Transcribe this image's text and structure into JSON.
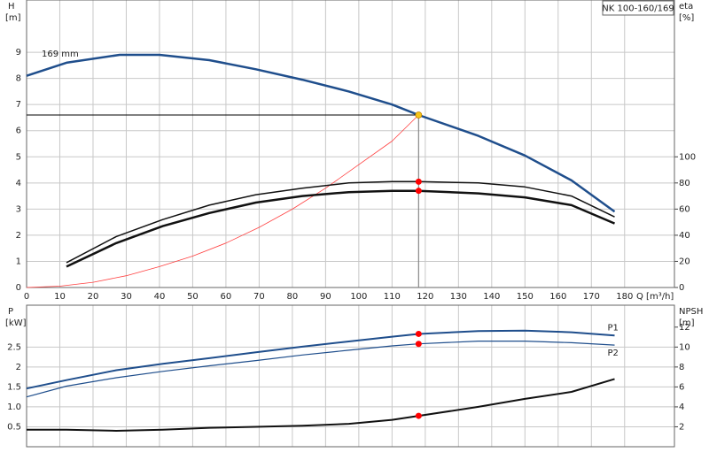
{
  "chart_data": [
    {
      "type": "line",
      "title": "NK 100-160/169",
      "xlabel": "Q [m³/h]",
      "ylabel": "H",
      "yunit": "[m]",
      "y2label": "eta",
      "y2unit": "[%]",
      "xlim": [
        0,
        195
      ],
      "xticks": [
        0,
        10,
        20,
        30,
        40,
        50,
        60,
        70,
        80,
        90,
        100,
        110,
        120,
        130,
        140,
        150,
        160,
        170,
        180
      ],
      "ylim": [
        0,
        11
      ],
      "yticks": [
        0,
        1,
        2,
        3,
        4,
        5,
        6,
        7,
        8,
        9
      ],
      "y2lim": [
        0,
        220
      ],
      "y2ticks": [
        0,
        20,
        40,
        60,
        80,
        100
      ],
      "grid": true,
      "series": [
        {
          "name": "169 mm",
          "color": "#1f4e8c",
          "width": 2.5,
          "x": [
            0,
            12,
            28,
            40,
            55,
            69,
            83,
            97,
            110,
            118,
            136,
            150,
            164,
            177
          ],
          "values": [
            8.1,
            8.6,
            8.9,
            8.9,
            8.7,
            8.35,
            7.95,
            7.5,
            7.0,
            6.6,
            5.8,
            5.05,
            4.1,
            2.9
          ]
        },
        {
          "color": "#ff4040",
          "width": 0.8,
          "x": [
            0,
            10,
            20,
            30,
            40,
            50,
            60,
            70,
            80,
            90,
            100,
            110,
            118
          ],
          "values": [
            0,
            0.05,
            0.2,
            0.45,
            0.8,
            1.2,
            1.7,
            2.3,
            3.0,
            3.8,
            4.7,
            5.6,
            6.6
          ]
        },
        {
          "color": "#111111",
          "width": 1.5,
          "axis": "y2",
          "x": [
            12,
            27,
            41,
            55,
            69,
            83,
            97,
            110,
            118,
            136,
            150,
            164,
            177
          ],
          "values": [
            19,
            39,
            52,
            63,
            71,
            76,
            80,
            81,
            81,
            80,
            77,
            70,
            54
          ]
        },
        {
          "color": "#111111",
          "width": 2.5,
          "axis": "y2",
          "x": [
            12,
            27,
            41,
            55,
            69,
            83,
            97,
            110,
            118,
            136,
            150,
            164,
            177
          ],
          "values": [
            16,
            34,
            47,
            57,
            65,
            70,
            73,
            74,
            74,
            72,
            69,
            63,
            49
          ]
        },
        {
          "color": "#f5c518",
          "marker": true,
          "guides": true,
          "x": [
            118
          ],
          "values": [
            6.6
          ]
        },
        {
          "color": "#ff0000",
          "marker": true,
          "axis": "y2",
          "x": [
            118
          ],
          "values": [
            81
          ]
        },
        {
          "color": "#ff0000",
          "marker": true,
          "axis": "y2",
          "x": [
            118
          ],
          "values": [
            74
          ]
        }
      ]
    },
    {
      "type": "line",
      "ylabel": "P",
      "yunit": "[kW]",
      "y2label": "NPSH",
      "y2unit": "[m]",
      "ylim": [
        0,
        3.55
      ],
      "yticks": [
        0.5,
        {
          "value": 1,
          "label": "1.0"
        },
        1.5,
        2,
        2.5
      ],
      "y2lim": [
        0,
        14.2
      ],
      "y2ticks": [
        2,
        4,
        6,
        8,
        10,
        12
      ],
      "grid": true,
      "series": [
        {
          "name": "P1",
          "color": "#1f4e8c",
          "width": 2,
          "x": [
            0,
            12,
            27,
            41,
            55,
            69,
            83,
            97,
            110,
            118,
            136,
            150,
            164,
            177
          ],
          "values": [
            1.46,
            1.67,
            1.92,
            2.08,
            2.22,
            2.37,
            2.51,
            2.64,
            2.76,
            2.83,
            2.9,
            2.91,
            2.87,
            2.79
          ]
        },
        {
          "name": "P2",
          "color": "#1f4e8c",
          "width": 1.2,
          "x": [
            0,
            12,
            27,
            41,
            55,
            69,
            83,
            97,
            110,
            118,
            136,
            150,
            164,
            177
          ],
          "values": [
            1.25,
            1.52,
            1.73,
            1.89,
            2.03,
            2.16,
            2.3,
            2.42,
            2.53,
            2.58,
            2.65,
            2.65,
            2.61,
            2.55
          ]
        },
        {
          "color": "#111111",
          "width": 2,
          "axis": "y2",
          "x": [
            0,
            12,
            27,
            41,
            55,
            69,
            83,
            97,
            110,
            118,
            136,
            150,
            164,
            177
          ],
          "values": [
            1.7,
            1.7,
            1.6,
            1.7,
            1.9,
            2.0,
            2.1,
            2.3,
            2.7,
            3.1,
            4.0,
            4.8,
            5.5,
            6.8
          ]
        },
        {
          "color": "#ff0000",
          "marker": true,
          "x": [
            118
          ],
          "values": [
            2.83
          ]
        },
        {
          "color": "#ff0000",
          "marker": true,
          "x": [
            118
          ],
          "values": [
            2.58
          ]
        },
        {
          "color": "#ff0000",
          "marker": true,
          "axis": "y2",
          "x": [
            118
          ],
          "values": [
            3.1
          ]
        }
      ]
    }
  ]
}
